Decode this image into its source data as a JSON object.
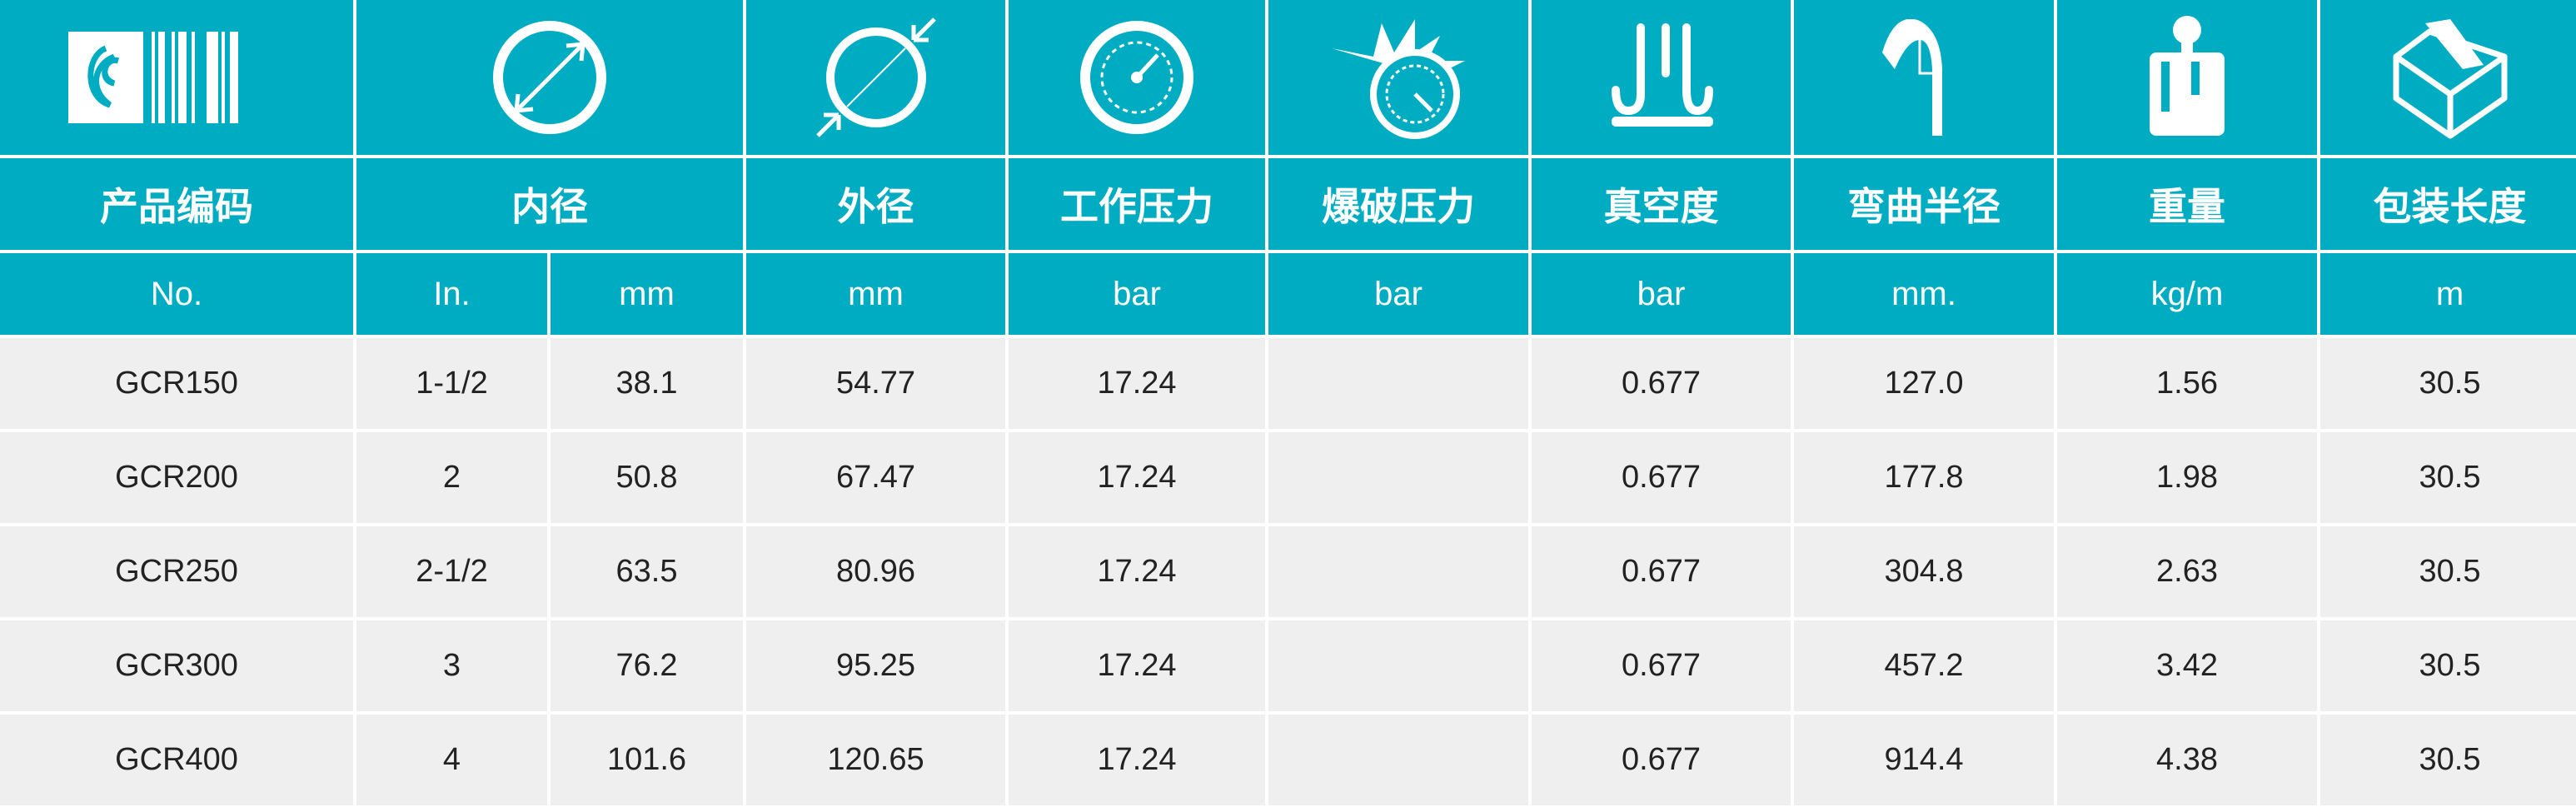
{
  "colors": {
    "header_bg": "#00acc1",
    "row_bg": "#efefef",
    "text": "#222222"
  },
  "icons": [
    "barcode-logo-icon",
    "inner-diameter-icon",
    "outer-diameter-icon",
    "working-pressure-gauge-icon",
    "burst-pressure-icon",
    "vacuum-icon",
    "bend-radius-icon",
    "weight-icon",
    "package-box-icon"
  ],
  "headers": [
    "产品编码",
    "内径",
    "外径",
    "工作压力",
    "爆破压力",
    "真空度",
    "弯曲半径",
    "重量",
    "包装长度"
  ],
  "units": [
    "No.",
    "In.",
    "mm",
    "mm",
    "bar",
    "bar",
    "bar",
    "mm.",
    "kg/m",
    "m"
  ],
  "rows": [
    [
      "GCR150",
      "1-1/2",
      "38.1",
      "54.77",
      "17.24",
      "",
      "0.677",
      "127.0",
      "1.56",
      "30.5"
    ],
    [
      "GCR200",
      "2",
      "50.8",
      "67.47",
      "17.24",
      "",
      "0.677",
      "177.8",
      "1.98",
      "30.5"
    ],
    [
      "GCR250",
      "2-1/2",
      "63.5",
      "80.96",
      "17.24",
      "",
      "0.677",
      "304.8",
      "2.63",
      "30.5"
    ],
    [
      "GCR300",
      "3",
      "76.2",
      "95.25",
      "17.24",
      "",
      "0.677",
      "457.2",
      "3.42",
      "30.5"
    ],
    [
      "GCR400",
      "4",
      "101.6",
      "120.65",
      "17.24",
      "",
      "0.677",
      "914.4",
      "4.38",
      "30.5"
    ]
  ]
}
